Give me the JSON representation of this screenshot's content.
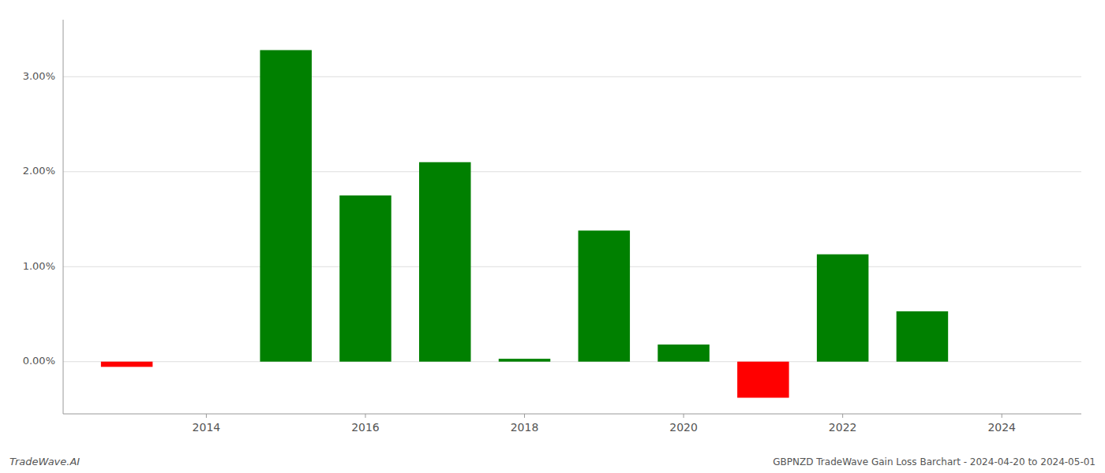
{
  "chart_data": {
    "type": "bar",
    "title": "GBPNZD TradeWave Gain Loss Barchart - 2024-04-20 to 2024-05-01",
    "annotations": [
      "TradeWave.AI"
    ],
    "x": [
      2013,
      2015,
      2016,
      2017,
      2018,
      2019,
      2020,
      2021,
      2022,
      2023
    ],
    "values": [
      -0.055,
      3.28,
      1.75,
      2.1,
      0.03,
      1.38,
      0.18,
      -0.38,
      1.13,
      0.53
    ],
    "colors": [
      "#ff0000",
      "#008000",
      "#008000",
      "#008000",
      "#008000",
      "#008000",
      "#008000",
      "#ff0000",
      "#008000",
      "#008000"
    ],
    "xlim": [
      2012.2,
      2025.0
    ],
    "xticks": [
      2014,
      2016,
      2018,
      2020,
      2022,
      2024
    ],
    "ylim": [
      -0.55,
      3.6
    ],
    "yticks": [
      {
        "value": 0.0,
        "label": "0.00%"
      },
      {
        "value": 1.0,
        "label": "1.00%"
      },
      {
        "value": 2.0,
        "label": "2.00%"
      },
      {
        "value": 3.0,
        "label": "3.00%"
      }
    ],
    "grid": true
  }
}
